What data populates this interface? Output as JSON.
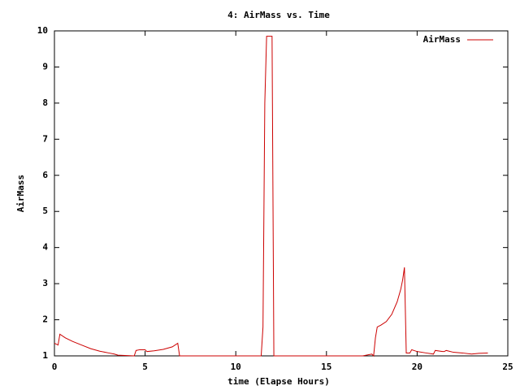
{
  "chart_data": {
    "type": "line",
    "title": "4: AirMass vs. Time",
    "xlabel": "time (Elapse Hours)",
    "ylabel": "AirMass",
    "x": [
      0,
      0.2,
      0.3,
      0.6,
      1,
      1.5,
      2,
      2.5,
      3,
      3.3,
      3.5,
      4.4,
      4.5,
      4.7,
      5,
      5.1,
      5.5,
      6,
      6.5,
      6.8,
      6.9,
      8,
      10,
      11.4,
      11.5,
      11.6,
      11.7,
      12,
      12.1,
      13,
      15,
      17,
      17.5,
      17.6,
      17.7,
      17.8,
      18,
      18.3,
      18.6,
      18.9,
      19.1,
      19.2,
      19.3,
      19.4,
      19.6,
      19.7,
      20,
      20.5,
      20.9,
      21,
      21.4,
      21.5,
      21.6,
      22,
      22.5,
      23,
      23.4,
      23.9
    ],
    "series": [
      {
        "name": "AirMass",
        "color": "#cc0000",
        "values": [
          1.35,
          1.3,
          1.6,
          1.5,
          1.4,
          1.3,
          1.2,
          1.13,
          1.08,
          1.05,
          1.02,
          1,
          1.15,
          1.17,
          1.17,
          1.12,
          1.14,
          1.18,
          1.25,
          1.35,
          1,
          1,
          1,
          1,
          1.8,
          8,
          9.85,
          9.85,
          1,
          1,
          1,
          1,
          1.05,
          1.0,
          1.5,
          1.8,
          1.85,
          1.95,
          2.15,
          2.5,
          2.85,
          3.1,
          3.45,
          1.08,
          1.08,
          1.17,
          1.12,
          1.08,
          1.05,
          1.15,
          1.12,
          1.12,
          1.15,
          1.1,
          1.08,
          1.05,
          1.07,
          1.08
        ]
      }
    ],
    "xlim": [
      0,
      25
    ],
    "xticks": [
      0,
      5,
      10,
      15,
      20,
      25
    ],
    "ylim": [
      1,
      10
    ],
    "yticks": [
      1,
      2,
      3,
      4,
      5,
      6,
      7,
      8,
      9,
      10
    ],
    "legend": "top right"
  }
}
